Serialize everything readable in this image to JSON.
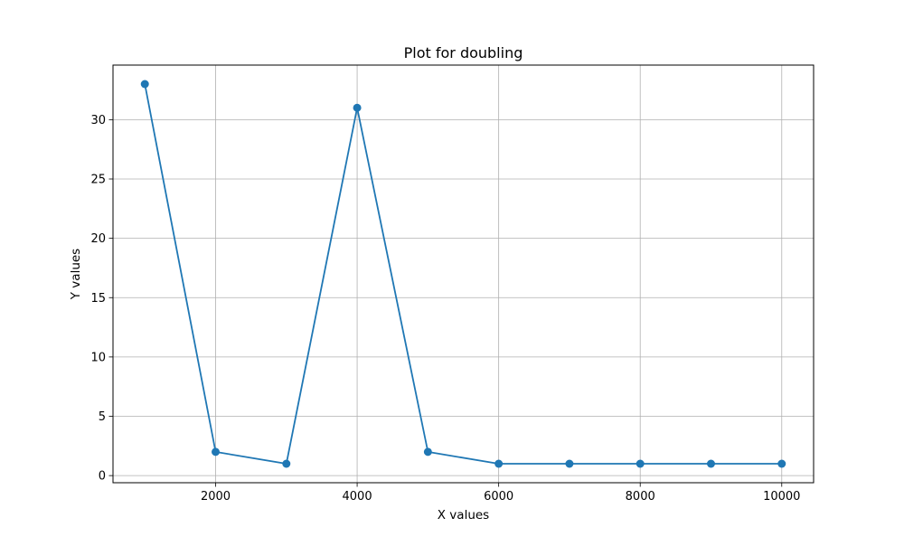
{
  "chart_data": {
    "type": "line",
    "title": "Plot for doubling",
    "xlabel": "X values",
    "ylabel": "Y values",
    "x": [
      1000,
      2000,
      3000,
      4000,
      5000,
      6000,
      7000,
      8000,
      9000,
      10000
    ],
    "series": [
      {
        "values": [
          33,
          2,
          1,
          31,
          2,
          1,
          1,
          1,
          1,
          1
        ],
        "color": "#1f77b4",
        "marker": "circle"
      }
    ],
    "xlim": [
      550,
      10450
    ],
    "ylim": [
      -0.6,
      34.6
    ],
    "xticks": [
      2000,
      4000,
      6000,
      8000,
      10000
    ],
    "yticks": [
      0,
      5,
      10,
      15,
      20,
      25,
      30
    ],
    "grid": true,
    "legend": "none"
  }
}
